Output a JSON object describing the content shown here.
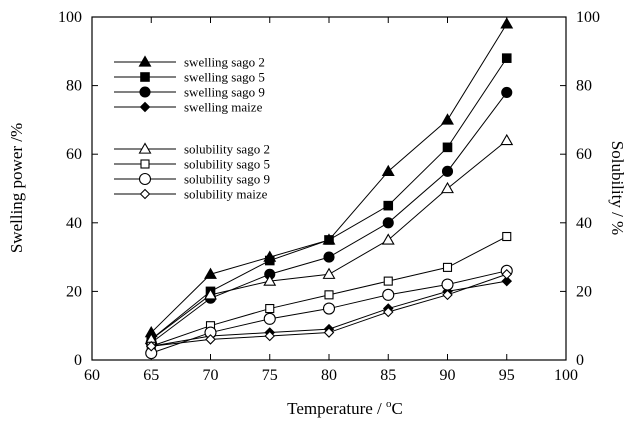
{
  "chart_data": {
    "type": "line",
    "xlabel_main": "Temperature / ",
    "xlabel_sup": "o",
    "xlabel_unit": "C",
    "ylabel_left": "Swelling power /%",
    "ylabel_right": "Solubility / %",
    "xlim": [
      60,
      100
    ],
    "ylim": [
      0,
      100
    ],
    "y2lim": [
      0,
      100
    ],
    "x_ticks": [
      60,
      65,
      70,
      75,
      80,
      85,
      90,
      95,
      100
    ],
    "y_ticks": [
      0,
      20,
      40,
      60,
      80,
      100
    ],
    "y2_ticks": [
      0,
      20,
      40,
      60,
      80,
      100
    ],
    "grid": false,
    "legend_position": "top-left",
    "x": [
      65,
      70,
      75,
      80,
      85,
      90,
      95
    ],
    "series": [
      {
        "name": "swelling sago 2",
        "axis": "left",
        "marker": "triangle",
        "filled": true,
        "values": [
          8,
          25,
          30,
          35,
          55,
          70,
          98
        ]
      },
      {
        "name": "swelling sago 5",
        "axis": "left",
        "marker": "square",
        "filled": true,
        "values": [
          6,
          20,
          29,
          35,
          45,
          62,
          88
        ]
      },
      {
        "name": "swelling sago 9",
        "axis": "left",
        "marker": "circle",
        "filled": true,
        "values": [
          5,
          18,
          25,
          30,
          40,
          55,
          78
        ]
      },
      {
        "name": "swelling maize",
        "axis": "left",
        "marker": "diamond",
        "filled": true,
        "values": [
          4,
          7,
          8,
          9,
          15,
          20,
          23
        ]
      },
      {
        "name": "solubility sago 2",
        "axis": "right",
        "marker": "triangle",
        "filled": false,
        "values": [
          6,
          19,
          23,
          25,
          35,
          50,
          64
        ]
      },
      {
        "name": "solubility sago 5",
        "axis": "right",
        "marker": "square",
        "filled": false,
        "values": [
          4,
          10,
          15,
          19,
          23,
          27,
          36
        ]
      },
      {
        "name": "solubility sago 9",
        "axis": "right",
        "marker": "circle",
        "filled": false,
        "values": [
          2,
          8,
          12,
          15,
          19,
          22,
          26
        ]
      },
      {
        "name": "solubility maize",
        "axis": "right",
        "marker": "diamond",
        "filled": false,
        "values": [
          4,
          6,
          7,
          8,
          14,
          19,
          25
        ]
      }
    ]
  }
}
